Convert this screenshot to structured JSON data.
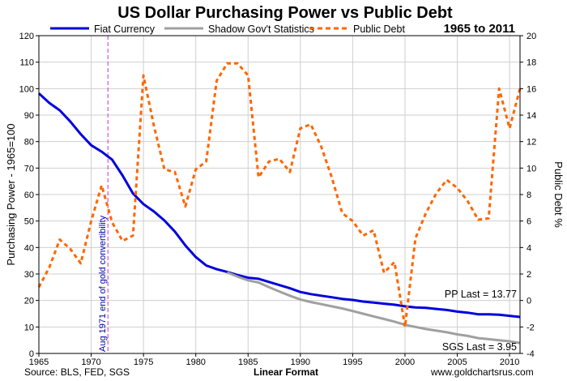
{
  "chart_data": {
    "type": "line",
    "title": "US Dollar Purchasing Power vs Public Debt",
    "date_range": "1965 to 2011",
    "ylabel_left": "Purchasing Power - 1965=100",
    "ylabel_right": "Public Debt %",
    "xlabel": "Linear Format",
    "xlim": [
      1965,
      2011
    ],
    "ylim_left": [
      0,
      120
    ],
    "ylim_right": [
      -4,
      20
    ],
    "x_ticks": [
      1965,
      1970,
      1975,
      1980,
      1985,
      1990,
      1995,
      2000,
      2005,
      2010
    ],
    "y_ticks_left": [
      0,
      10,
      20,
      30,
      40,
      50,
      60,
      70,
      80,
      90,
      100,
      110,
      120
    ],
    "y_ticks_right": [
      -4,
      -2,
      0,
      2,
      4,
      6,
      8,
      10,
      12,
      14,
      16,
      18,
      20
    ],
    "grid": true,
    "legend_position": "top",
    "series": [
      {
        "name": "Fiat Currency",
        "axis": "left",
        "color": "#0000dd",
        "style": "solid",
        "x": [
          1965,
          1966,
          1967,
          1968,
          1969,
          1970,
          1971,
          1972,
          1973,
          1974,
          1975,
          1976,
          1977,
          1978,
          1979,
          1980,
          1981,
          1982,
          1983,
          1984,
          1985,
          1986,
          1987,
          1988,
          1989,
          1990,
          1991,
          1992,
          1993,
          1994,
          1995,
          1996,
          1997,
          1998,
          1999,
          2000,
          2001,
          2002,
          2003,
          2004,
          2005,
          2006,
          2007,
          2008,
          2009,
          2010,
          2011
        ],
        "values": [
          98.2,
          94.6,
          91.8,
          87.6,
          82.8,
          78.6,
          76.2,
          73.2,
          67.2,
          60.4,
          56.4,
          53.6,
          50.2,
          46.0,
          40.8,
          36.4,
          33.2,
          31.8,
          30.8,
          29.6,
          28.6,
          28.2,
          27.0,
          25.8,
          24.6,
          23.2,
          22.4,
          21.8,
          21.2,
          20.6,
          20.2,
          19.6,
          19.2,
          18.8,
          18.4,
          17.8,
          17.4,
          17.2,
          16.8,
          16.4,
          15.8,
          15.4,
          14.8,
          14.8,
          14.6,
          14.2,
          13.77
        ]
      },
      {
        "name": "Shadow Gov't Statistics",
        "axis": "left",
        "color": "#a0a0a0",
        "style": "solid",
        "x": [
          1983,
          1984,
          1985,
          1986,
          1987,
          1988,
          1989,
          1990,
          1991,
          1992,
          1993,
          1994,
          1995,
          1996,
          1997,
          1998,
          1999,
          2000,
          2001,
          2002,
          2003,
          2004,
          2005,
          2006,
          2007,
          2008,
          2009,
          2010,
          2011
        ],
        "values": [
          30.6,
          29.0,
          27.6,
          26.8,
          25.0,
          23.4,
          21.8,
          20.4,
          19.4,
          18.6,
          17.8,
          17.0,
          16.0,
          15.0,
          14.0,
          13.0,
          12.0,
          10.8,
          10.0,
          9.2,
          8.6,
          8.0,
          7.2,
          6.6,
          5.8,
          5.4,
          5.0,
          4.6,
          3.95
        ]
      },
      {
        "name": "Public Debt",
        "axis": "right",
        "color": "#ff6600",
        "style": "dashed",
        "x": [
          1965,
          1966,
          1967,
          1968,
          1969,
          1970,
          1971,
          1972,
          1973,
          1974,
          1975,
          1976,
          1977,
          1978,
          1979,
          1980,
          1981,
          1982,
          1983,
          1984,
          1985,
          1986,
          1987,
          1988,
          1989,
          1990,
          1991,
          1992,
          1993,
          1994,
          1995,
          1996,
          1997,
          1998,
          1999,
          2000,
          2001,
          2002,
          2003,
          2004,
          2005,
          2006,
          2007,
          2008,
          2009,
          2010,
          2011
        ],
        "values": [
          1.0,
          2.5,
          4.6,
          3.9,
          2.8,
          6.0,
          8.7,
          5.9,
          4.5,
          4.9,
          17.0,
          13.2,
          9.9,
          9.7,
          7.1,
          9.9,
          10.5,
          16.6,
          17.9,
          17.9,
          17.0,
          9.3,
          10.5,
          10.7,
          9.7,
          13.0,
          13.3,
          11.6,
          9.3,
          6.6,
          6.0,
          4.9,
          5.3,
          2.1,
          2.9,
          -2.0,
          4.7,
          6.6,
          8.1,
          9.1,
          8.5,
          7.5,
          6.1,
          6.2,
          16.0,
          13.0,
          16.0
        ]
      }
    ],
    "annotations": {
      "vline_label": "Aug 1971 end of gold convertibility",
      "vline_x": 1971.6,
      "pp_last": "PP Last = 13.77",
      "sgs_last": "SGS Last = 3.95"
    }
  },
  "footer": {
    "source": "Source: BLS, FED, SGS",
    "format": "Linear Format",
    "website": "www.goldchartsrus.com"
  }
}
